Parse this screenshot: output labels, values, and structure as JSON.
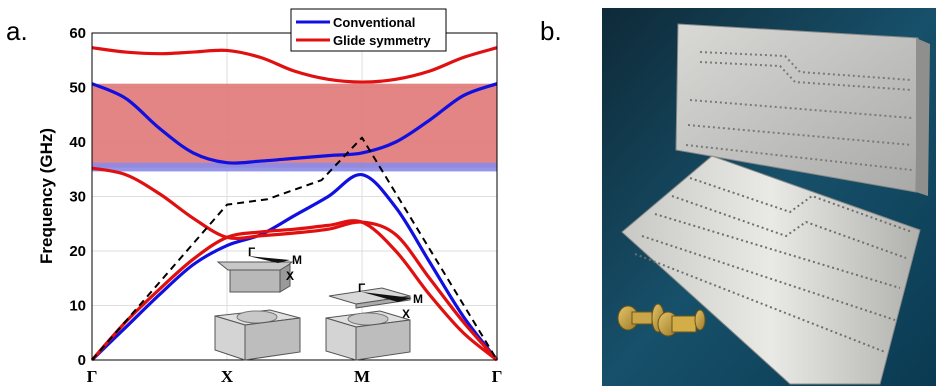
{
  "panel_a_label": "a.",
  "panel_b_label": "b.",
  "colors": {
    "conventional": "#1010e0",
    "glide": "#e01010",
    "light_line": "#000000",
    "glide_gap_band": "#e07878",
    "conventional_gap_band": "#8a8ae8"
  },
  "chart_data": {
    "type": "line",
    "title": "",
    "xlabel": "",
    "ylabel": "Frequency (GHz)",
    "ylim": [
      0,
      60
    ],
    "yticks": [
      0,
      10,
      20,
      30,
      40,
      50,
      60
    ],
    "x_tick_labels": [
      "Γ",
      "X",
      "M",
      "Γ"
    ],
    "xlim": [
      0,
      3
    ],
    "legend": [
      "Conventional",
      "Glide symmetry"
    ],
    "legend_position": "top-right",
    "grid": true,
    "series": [
      {
        "name": "Conventional",
        "color_key": "conventional",
        "curves": [
          {
            "x": [
              0,
              0.25,
              0.5,
              0.75,
              1,
              1.25,
              1.5,
              1.75,
              2,
              2.25,
              2.5,
              2.75,
              3
            ],
            "y": [
              0,
              6,
              12,
              17.5,
              21,
              23,
              26.5,
              30,
              34,
              28,
              18,
              8,
              0
            ]
          },
          {
            "x": [
              0,
              0.25,
              0.5,
              0.75,
              1,
              1.25,
              1.5,
              1.75,
              2,
              2.25,
              2.5,
              2.75,
              3
            ],
            "y": [
              50.7,
              48,
              42.5,
              38,
              36.2,
              36.5,
              37,
              37.5,
              38,
              40,
              44,
              48.5,
              50.7
            ]
          }
        ]
      },
      {
        "name": "Glide symmetry",
        "color_key": "glide",
        "curves": [
          {
            "x": [
              0,
              0.25,
              0.5,
              0.75,
              1,
              1.25,
              1.5,
              1.75,
              2,
              2.25,
              2.5,
              2.75,
              3
            ],
            "y": [
              0,
              7,
              13,
              18.5,
              22.5,
              23.5,
              24,
              24.7,
              25.3,
              20,
              12,
              5,
              0
            ]
          },
          {
            "x": [
              0,
              0.25,
              0.5,
              0.75,
              1,
              1.25,
              1.5,
              1.75,
              2,
              2.25,
              2.5,
              2.75,
              3
            ],
            "y": [
              35.2,
              34,
              30.5,
              26,
              22.5,
              22.8,
              23.3,
              24,
              25.3,
              23,
              15,
              7,
              0
            ]
          },
          {
            "x": [
              0,
              0.25,
              0.5,
              0.75,
              1,
              1.25,
              1.5,
              1.75,
              2,
              2.25,
              2.5,
              2.75,
              3
            ],
            "y": [
              57.3,
              56.5,
              56.2,
              56.5,
              56.8,
              55.5,
              53,
              51.5,
              51,
              51.5,
              53,
              55.5,
              57.3
            ]
          }
        ]
      },
      {
        "name": "",
        "color_key": "light_line",
        "dashed": true,
        "curves": [
          {
            "x": [
              0,
              1,
              1.3,
              1.7,
              2,
              3
            ],
            "y": [
              0,
              28.5,
              29.5,
              33,
              40.8,
              0
            ]
          }
        ]
      }
    ],
    "bands": [
      {
        "y_from": 35.3,
        "y_to": 50.7,
        "color_key": "glide_gap_band"
      },
      {
        "y_from": 34.6,
        "y_to": 36.2,
        "color_key": "conventional_gap_band"
      }
    ]
  },
  "inset": {
    "gamma": "Γ",
    "x": "X",
    "m": "M"
  },
  "photo": {
    "description_icon": "machined-waveguide-photo"
  }
}
